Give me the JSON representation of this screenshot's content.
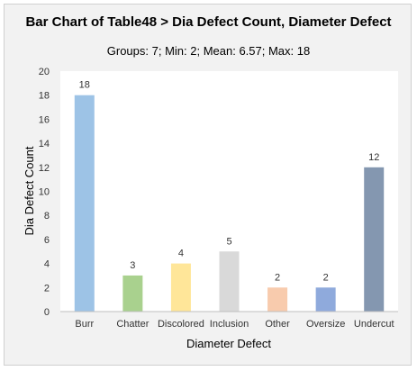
{
  "chart_data": {
    "type": "bar",
    "title": "Bar Chart of Table48 > Dia Defect Count, Diameter Defect",
    "subtitle": "Groups: 7; Min: 2; Mean: 6.57; Max: 18",
    "xlabel": "Diameter Defect",
    "ylabel": "Dia Defect Count",
    "categories": [
      "Burr",
      "Chatter",
      "Discolored",
      "Inclusion",
      "Other",
      "Oversize",
      "Undercut"
    ],
    "values": [
      18,
      3,
      4,
      5,
      2,
      2,
      12
    ],
    "colors": [
      "#9dc3e6",
      "#a9d18e",
      "#ffe699",
      "#d9d9d9",
      "#f8cbad",
      "#8faadc",
      "#8497b0"
    ],
    "ylim": [
      0,
      20
    ],
    "yticks": [
      0,
      2,
      4,
      6,
      8,
      10,
      12,
      14,
      16,
      18,
      20
    ],
    "grid": false,
    "data_labels": true
  }
}
